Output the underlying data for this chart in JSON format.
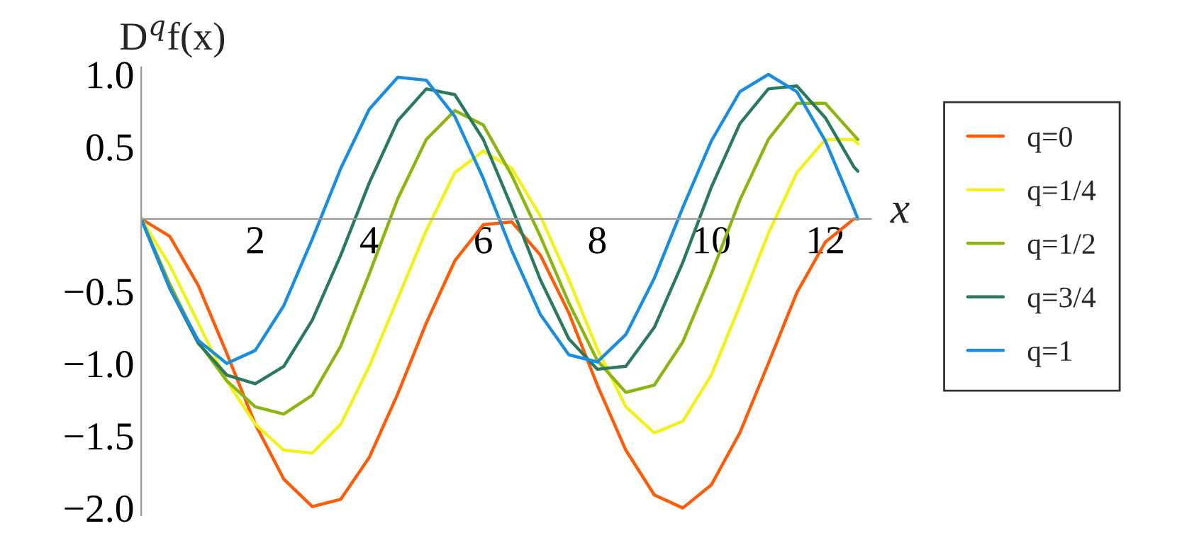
{
  "chart_data": {
    "type": "line",
    "xlabel": "x",
    "ylabel": "D$^{q}$f(x)",
    "x": [
      0,
      0.5,
      1,
      1.5,
      2,
      2.5,
      3,
      3.5,
      4,
      4.5,
      5,
      5.5,
      6,
      6.5,
      7,
      7.5,
      8,
      8.5,
      9,
      9.5,
      10,
      10.5,
      11,
      11.5,
      12,
      12.5,
      12.57
    ],
    "series": [
      {
        "name": "q=0",
        "color": "#ff5c0a",
        "values": [
          0,
          -0.12,
          -0.46,
          -0.93,
          -1.42,
          -1.8,
          -1.99,
          -1.94,
          -1.65,
          -1.21,
          -0.72,
          -0.29,
          -0.04,
          -0.02,
          -0.25,
          -0.65,
          -1.15,
          -1.6,
          -1.91,
          -2.0,
          -1.84,
          -1.48,
          -1.0,
          -0.51,
          -0.16,
          0,
          0
        ]
      },
      {
        "name": "q=1/4",
        "color": "#f2f21a",
        "values": [
          0,
          -0.32,
          -0.72,
          -1.12,
          -1.42,
          -1.6,
          -1.62,
          -1.42,
          -1.02,
          -0.55,
          -0.08,
          0.32,
          0.47,
          0.35,
          0.02,
          -0.42,
          -0.9,
          -1.3,
          -1.48,
          -1.4,
          -1.08,
          -0.6,
          -0.1,
          0.32,
          0.55,
          0.55,
          0.52
        ]
      },
      {
        "name": "q=1/2",
        "color": "#8db512",
        "values": [
          0,
          -0.45,
          -0.85,
          -1.12,
          -1.3,
          -1.35,
          -1.22,
          -0.88,
          -0.38,
          0.14,
          0.55,
          0.75,
          0.65,
          0.3,
          -0.12,
          -0.58,
          -0.98,
          -1.2,
          -1.15,
          -0.85,
          -0.38,
          0.13,
          0.55,
          0.8,
          0.8,
          0.58,
          0.55
        ]
      },
      {
        "name": "q=3/4",
        "color": "#2b7a5e",
        "values": [
          0,
          -0.48,
          -0.86,
          -1.08,
          -1.14,
          -1.02,
          -0.7,
          -0.25,
          0.25,
          0.68,
          0.9,
          0.86,
          0.55,
          0.08,
          -0.42,
          -0.83,
          -1.04,
          -1.02,
          -0.75,
          -0.3,
          0.22,
          0.66,
          0.9,
          0.92,
          0.7,
          0.36,
          0.33
        ]
      },
      {
        "name": "q=1",
        "color": "#1a8de0",
        "values": [
          0,
          -0.48,
          -0.84,
          -1.0,
          -0.91,
          -0.6,
          -0.14,
          0.35,
          0.76,
          0.98,
          0.96,
          0.71,
          0.28,
          -0.22,
          -0.66,
          -0.94,
          -0.99,
          -0.8,
          -0.41,
          0.08,
          0.54,
          0.88,
          1.0,
          0.88,
          0.54,
          0.07,
          0
        ]
      }
    ],
    "xlim": [
      0,
      12.8
    ],
    "ylim": [
      -2.05,
      1.05
    ],
    "xticks": [
      2,
      4,
      6,
      8,
      10,
      12
    ],
    "yticks": [
      {
        "value": -2.0,
        "label": "−2.0"
      },
      {
        "value": -1.5,
        "label": "−1.5"
      },
      {
        "value": -1.0,
        "label": "−1.0"
      },
      {
        "value": -0.5,
        "label": "−0.5"
      },
      {
        "value": 0.5,
        "label": "0.5"
      },
      {
        "value": 1.0,
        "label": "1.0"
      }
    ],
    "grid": false,
    "legend": "right",
    "marker": "none",
    "line_style": "solid"
  }
}
